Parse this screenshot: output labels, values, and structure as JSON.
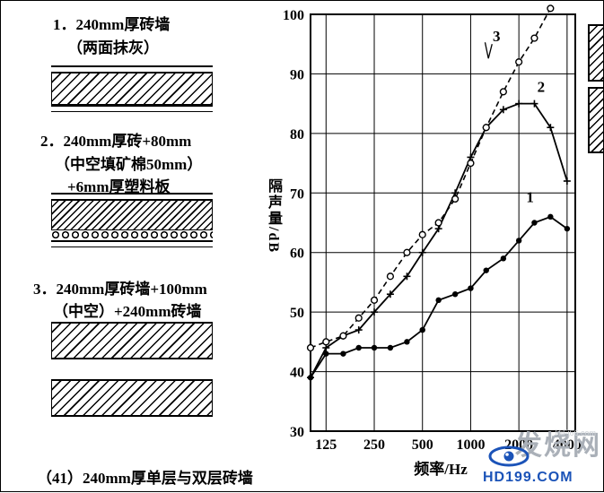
{
  "left_panel": {
    "items": [
      {
        "lines": [
          "1．240mm厚砖墙",
          "（两面抹灰）"
        ]
      },
      {
        "lines": [
          "2．240mm厚砖+80mm",
          "（中空填矿棉50mm）",
          "+6mm厚塑料板"
        ]
      },
      {
        "lines": [
          "3．240mm厚砖墙+100mm",
          "（中空）+240mm砖墙"
        ]
      }
    ],
    "caption": "（41）240mm厚单层与双层砖墙"
  },
  "chart_data": {
    "type": "line",
    "title": "",
    "xlabel": "频率/Hz",
    "ylabel": "隔声量/dB",
    "x_scale": "log",
    "xlim": [
      100,
      4500
    ],
    "ylim": [
      30,
      100
    ],
    "x_ticks": [
      125,
      250,
      500,
      1000,
      2000,
      4000
    ],
    "y_ticks": [
      30,
      40,
      50,
      60,
      70,
      80,
      90,
      100
    ],
    "grid": true,
    "x": [
      100,
      125,
      160,
      200,
      250,
      315,
      400,
      500,
      630,
      800,
      1000,
      1250,
      1600,
      2000,
      2500,
      3150,
      4000
    ],
    "series": [
      {
        "name": "1",
        "marker": "filled-circle",
        "line": "solid",
        "values": [
          39,
          43,
          43,
          44,
          44,
          44,
          45,
          47,
          52,
          53,
          54,
          57,
          59,
          62,
          65,
          66,
          64
        ]
      },
      {
        "name": "2",
        "marker": "plus",
        "line": "solid",
        "values": [
          39,
          44,
          46,
          47,
          50,
          53,
          56,
          60,
          64,
          70,
          76,
          81,
          84,
          85,
          85,
          81,
          72
        ]
      },
      {
        "name": "3",
        "marker": "open-circle",
        "line": "dashed",
        "values": [
          44,
          45,
          46,
          49,
          52,
          56,
          60,
          63,
          65,
          69,
          75,
          81,
          87,
          92,
          96,
          101,
          null
        ]
      }
    ],
    "labels": [
      {
        "text": "1",
        "x": 2350,
        "y": 68.5
      },
      {
        "text": "2",
        "x": 2750,
        "y": 87
      },
      {
        "text": "3",
        "x": 1450,
        "y": 95.5
      }
    ],
    "pointer_points": [
      [
        1230,
        95.3
      ],
      [
        1290,
        92.6
      ],
      [
        1360,
        95.0
      ]
    ]
  },
  "watermark": {
    "brand": "发烧网",
    "small": "HiFi66.com",
    "site": "HD199.COM"
  }
}
